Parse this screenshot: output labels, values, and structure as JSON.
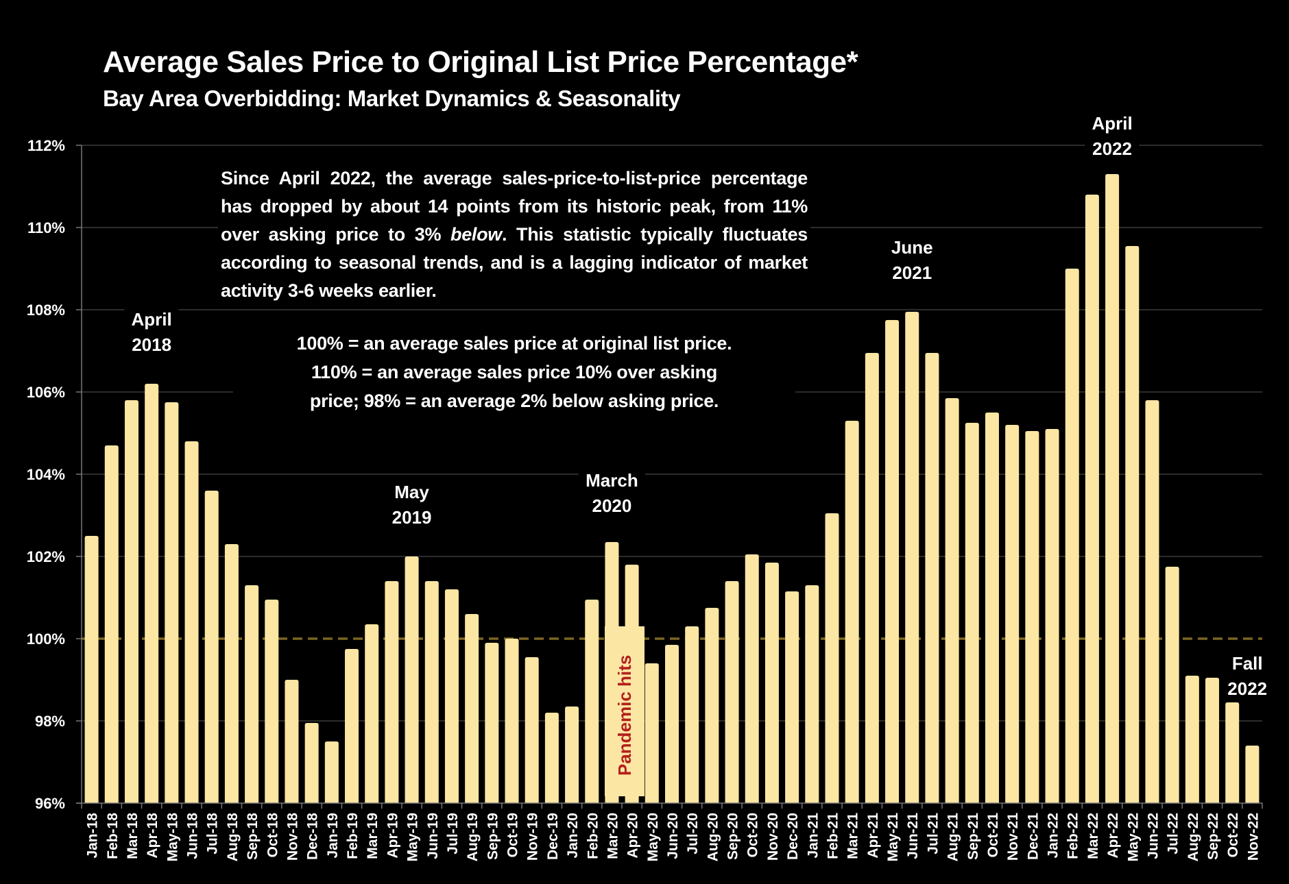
{
  "header": {
    "title": "Average Sales Price to Original List Price Percentage*",
    "subtitle": "Bay Area Overbidding: Market Dynamics & Seasonality"
  },
  "notes": {
    "main_before_italic": "Since April 2022, the average sales-price-to-list-price percentage has dropped by about 14 points from its historic peak, from 11% over asking price to 3% ",
    "main_italic": "below",
    "main_after_italic": ". This statistic typically fluctuates according to seasonal trends, and is a lagging indicator of market activity 3-6 weeks earlier.",
    "explainer_lines": [
      "100% = an average sales price at original list price.",
      "110% = an average sales price 10% over asking",
      "price; 98% = an average 2% below asking price."
    ]
  },
  "annotations": [
    {
      "line1": "April",
      "line2": "2018",
      "category": "Apr-18"
    },
    {
      "line1": "May",
      "line2": "2019",
      "category": "May-19"
    },
    {
      "line1": "March",
      "line2": "2020",
      "category": "Mar-20"
    },
    {
      "line1": "June",
      "line2": "2021",
      "category": "Jun-21"
    },
    {
      "line1": "April",
      "line2": "2022",
      "category": "Apr-22"
    },
    {
      "line1": "Fall",
      "line2": "2022",
      "category": "Oct-22"
    }
  ],
  "pandemic_label": "Pandemic hits",
  "colors": {
    "bar": "#fbe6a3",
    "background": "#000000",
    "text": "#ffffff",
    "reference_line": "#7a6424",
    "gridline": "#3a3a3a",
    "pandemic_text": "#b3201d"
  },
  "chart_data": {
    "type": "bar",
    "title": "Average Sales Price to Original List Price Percentage*",
    "subtitle": "Bay Area Overbidding: Market Dynamics & Seasonality",
    "xlabel": "",
    "ylabel": "",
    "ylim": [
      96,
      112
    ],
    "yticks": [
      96,
      98,
      100,
      102,
      104,
      106,
      108,
      110,
      112
    ],
    "ytick_labels": [
      "96%",
      "98%",
      "100%",
      "102%",
      "104%",
      "106%",
      "108%",
      "110%",
      "112%"
    ],
    "grid": true,
    "reference_line": {
      "value": 100,
      "style": "dashed"
    },
    "legend": "none",
    "categories": [
      "Jan-18",
      "Feb-18",
      "Mar-18",
      "Apr-18",
      "May-18",
      "Jun-18",
      "Jul-18",
      "Aug-18",
      "Sep-18",
      "Oct-18",
      "Nov-18",
      "Dec-18",
      "Jan-19",
      "Feb-19",
      "Mar-19",
      "Apr-19",
      "May-19",
      "Jun-19",
      "Jul-19",
      "Aug-19",
      "Sep-19",
      "Oct-19",
      "Nov-19",
      "Dec-19",
      "Jan-20",
      "Feb-20",
      "Mar-20",
      "Apr-20",
      "May-20",
      "Jun-20",
      "Jul-20",
      "Aug-20",
      "Sep-20",
      "Oct-20",
      "Nov-20",
      "Dec-20",
      "Jan-21",
      "Feb-21",
      "Mar-21",
      "Apr-21",
      "May-21",
      "Jun-21",
      "Jul-21",
      "Aug-21",
      "Sep-21",
      "Oct-21",
      "Nov-21",
      "Dec-21",
      "Jan-22",
      "Feb-22",
      "Mar-22",
      "Apr-22",
      "May-22",
      "Jun-22",
      "Jul-22",
      "Aug-22",
      "Sep-22",
      "Oct-22",
      "Nov-22"
    ],
    "values": [
      102.5,
      104.7,
      105.8,
      106.2,
      105.75,
      104.8,
      103.6,
      102.3,
      101.3,
      100.95,
      99.0,
      97.95,
      97.5,
      99.75,
      100.35,
      101.4,
      102.0,
      101.4,
      101.2,
      100.6,
      99.9,
      100.0,
      99.55,
      98.2,
      98.35,
      100.95,
      102.35,
      101.8,
      99.4,
      99.85,
      100.3,
      100.75,
      101.4,
      102.05,
      101.85,
      101.15,
      101.3,
      103.05,
      105.3,
      106.95,
      107.75,
      107.95,
      106.95,
      105.85,
      105.25,
      105.5,
      105.2,
      105.05,
      105.1,
      109.0,
      110.8,
      111.3,
      109.55,
      105.8,
      101.75,
      99.1,
      99.05,
      98.45,
      97.4
    ]
  }
}
